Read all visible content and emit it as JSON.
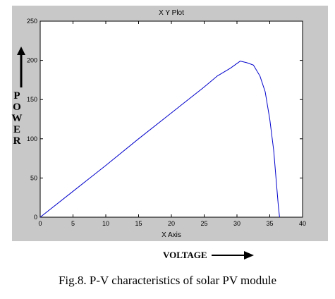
{
  "chart_data": {
    "type": "line",
    "title": "X Y Plot",
    "xlabel": "X Axis",
    "ylabel": "",
    "xlim": [
      0,
      40
    ],
    "ylim": [
      0,
      250
    ],
    "xticks": [
      0,
      5,
      10,
      15,
      20,
      25,
      30,
      35,
      40
    ],
    "yticks": [
      0,
      50,
      100,
      150,
      200,
      250
    ],
    "grid": false,
    "series": [
      {
        "color": "#0000cc",
        "x": [
          0,
          5,
          10,
          15,
          20,
          25,
          27,
          29,
          30.5,
          31.5,
          32.5,
          33.5,
          34.3,
          35.0,
          35.6,
          36.0,
          36.3,
          36.5
        ],
        "values": [
          0,
          33,
          66,
          100,
          133,
          166,
          180,
          190,
          199,
          197,
          194,
          180,
          160,
          125,
          85,
          45,
          15,
          0
        ]
      }
    ]
  },
  "labels": {
    "power_axis": [
      "P",
      "O",
      "W",
      "E",
      "R"
    ],
    "voltage_axis": "VOLTAGE",
    "figure_caption": "Fig.8. P-V characteristics of solar PV module"
  }
}
